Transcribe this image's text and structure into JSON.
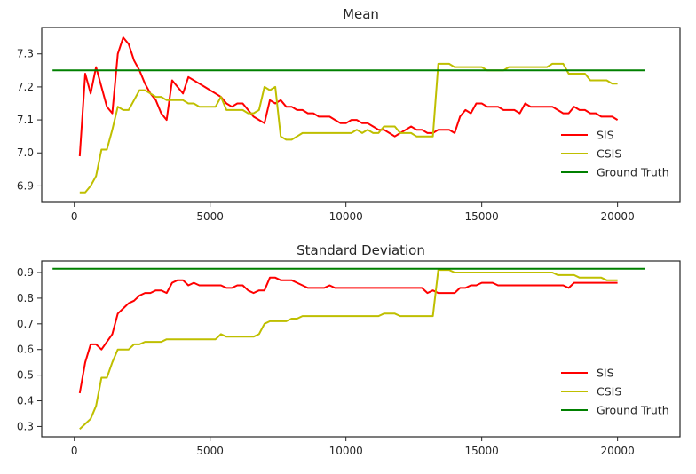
{
  "chart_data": [
    {
      "type": "line",
      "title": "Mean",
      "xlabel": "",
      "ylabel": "",
      "xlim": [
        -1200,
        22300
      ],
      "ylim": [
        6.85,
        7.38
      ],
      "xticks": [
        0,
        5000,
        10000,
        15000,
        20000
      ],
      "yticks": [
        6.9,
        7.0,
        7.1,
        7.2,
        7.3
      ],
      "ytick_decimals": 1,
      "grid": false,
      "legend_position": "lower-right",
      "series": [
        {
          "name": "SIS",
          "color": "#ff0000",
          "x": [
            200,
            400,
            600,
            800,
            1000,
            1200,
            1400,
            1600,
            1800,
            2000,
            2200,
            2400,
            2600,
            2800,
            3000,
            3200,
            3400,
            3600,
            3800,
            4000,
            4200,
            4400,
            4600,
            4800,
            5000,
            5200,
            5400,
            5600,
            5800,
            6000,
            6200,
            6400,
            6600,
            6800,
            7000,
            7200,
            7400,
            7600,
            7800,
            8000,
            8200,
            8400,
            8600,
            8800,
            9000,
            9200,
            9400,
            9600,
            9800,
            10000,
            10200,
            10400,
            10600,
            10800,
            11000,
            11200,
            11400,
            11600,
            11800,
            12000,
            12200,
            12400,
            12600,
            12800,
            13000,
            13200,
            13400,
            13600,
            13800,
            14000,
            14200,
            14400,
            14600,
            14800,
            15000,
            15200,
            15400,
            15600,
            15800,
            16000,
            16200,
            16400,
            16600,
            16800,
            17000,
            17200,
            17400,
            17600,
            17800,
            18000,
            18200,
            18400,
            18600,
            18800,
            19000,
            19200,
            19400,
            19600,
            19800,
            20000
          ],
          "values": [
            6.99,
            7.24,
            7.18,
            7.26,
            7.2,
            7.14,
            7.12,
            7.3,
            7.35,
            7.33,
            7.28,
            7.25,
            7.21,
            7.18,
            7.16,
            7.12,
            7.1,
            7.22,
            7.2,
            7.18,
            7.23,
            7.22,
            7.21,
            7.2,
            7.19,
            7.18,
            7.17,
            7.15,
            7.14,
            7.15,
            7.15,
            7.13,
            7.11,
            7.1,
            7.09,
            7.16,
            7.15,
            7.16,
            7.14,
            7.14,
            7.13,
            7.13,
            7.12,
            7.12,
            7.11,
            7.11,
            7.11,
            7.1,
            7.09,
            7.09,
            7.1,
            7.1,
            7.09,
            7.09,
            7.08,
            7.07,
            7.07,
            7.06,
            7.05,
            7.06,
            7.07,
            7.08,
            7.07,
            7.07,
            7.06,
            7.06,
            7.07,
            7.07,
            7.07,
            7.06,
            7.11,
            7.13,
            7.12,
            7.15,
            7.15,
            7.14,
            7.14,
            7.14,
            7.13,
            7.13,
            7.13,
            7.12,
            7.15,
            7.14,
            7.14,
            7.14,
            7.14,
            7.14,
            7.13,
            7.12,
            7.12,
            7.14,
            7.13,
            7.13,
            7.12,
            7.12,
            7.11,
            7.11,
            7.11,
            7.1
          ]
        },
        {
          "name": "CSIS",
          "color": "#bfbf00",
          "x": [
            200,
            400,
            600,
            800,
            1000,
            1200,
            1400,
            1600,
            1800,
            2000,
            2200,
            2400,
            2600,
            2800,
            3000,
            3200,
            3400,
            3600,
            3800,
            4000,
            4200,
            4400,
            4600,
            4800,
            5000,
            5200,
            5400,
            5600,
            5800,
            6000,
            6200,
            6400,
            6600,
            6800,
            7000,
            7200,
            7400,
            7600,
            7800,
            8000,
            8200,
            8400,
            8600,
            8800,
            9000,
            9200,
            9400,
            9600,
            9800,
            10000,
            10200,
            10400,
            10600,
            10800,
            11000,
            11200,
            11400,
            11600,
            11800,
            12000,
            12200,
            12400,
            12600,
            12800,
            13000,
            13200,
            13400,
            13600,
            13800,
            14000,
            14200,
            14400,
            14600,
            14800,
            15000,
            15200,
            15400,
            15600,
            15800,
            16000,
            16200,
            16400,
            16600,
            16800,
            17000,
            17200,
            17400,
            17600,
            17800,
            18000,
            18200,
            18400,
            18600,
            18800,
            19000,
            19200,
            19400,
            19600,
            19800,
            20000
          ],
          "values": [
            6.88,
            6.88,
            6.9,
            6.93,
            7.01,
            7.01,
            7.07,
            7.14,
            7.13,
            7.13,
            7.16,
            7.19,
            7.19,
            7.18,
            7.17,
            7.17,
            7.16,
            7.16,
            7.16,
            7.16,
            7.15,
            7.15,
            7.14,
            7.14,
            7.14,
            7.14,
            7.17,
            7.13,
            7.13,
            7.13,
            7.13,
            7.12,
            7.12,
            7.13,
            7.2,
            7.19,
            7.2,
            7.05,
            7.04,
            7.04,
            7.05,
            7.06,
            7.06,
            7.06,
            7.06,
            7.06,
            7.06,
            7.06,
            7.06,
            7.06,
            7.06,
            7.07,
            7.06,
            7.07,
            7.06,
            7.06,
            7.08,
            7.08,
            7.08,
            7.06,
            7.06,
            7.06,
            7.05,
            7.05,
            7.05,
            7.05,
            7.27,
            7.27,
            7.27,
            7.26,
            7.26,
            7.26,
            7.26,
            7.26,
            7.26,
            7.25,
            7.25,
            7.25,
            7.25,
            7.26,
            7.26,
            7.26,
            7.26,
            7.26,
            7.26,
            7.26,
            7.26,
            7.27,
            7.27,
            7.27,
            7.24,
            7.24,
            7.24,
            7.24,
            7.22,
            7.22,
            7.22,
            7.22,
            7.21,
            7.21
          ]
        },
        {
          "name": "Ground Truth",
          "color": "#008000",
          "x": [
            -800,
            21000
          ],
          "values": [
            7.25,
            7.25
          ]
        }
      ]
    },
    {
      "type": "line",
      "title": "Standard Deviation",
      "xlabel": "",
      "ylabel": "",
      "xlim": [
        -1200,
        22300
      ],
      "ylim": [
        0.26,
        0.945
      ],
      "xticks": [
        0,
        5000,
        10000,
        15000,
        20000
      ],
      "yticks": [
        0.3,
        0.4,
        0.5,
        0.6,
        0.7,
        0.8,
        0.9
      ],
      "ytick_decimals": 1,
      "grid": false,
      "legend_position": "lower-right",
      "series": [
        {
          "name": "SIS",
          "color": "#ff0000",
          "x": [
            200,
            400,
            600,
            800,
            1000,
            1200,
            1400,
            1600,
            1800,
            2000,
            2200,
            2400,
            2600,
            2800,
            3000,
            3200,
            3400,
            3600,
            3800,
            4000,
            4200,
            4400,
            4600,
            4800,
            5000,
            5200,
            5400,
            5600,
            5800,
            6000,
            6200,
            6400,
            6600,
            6800,
            7000,
            7200,
            7400,
            7600,
            7800,
            8000,
            8200,
            8400,
            8600,
            8800,
            9000,
            9200,
            9400,
            9600,
            9800,
            10000,
            10200,
            10400,
            10600,
            10800,
            11000,
            11200,
            11400,
            11600,
            11800,
            12000,
            12200,
            12400,
            12600,
            12800,
            13000,
            13200,
            13400,
            13600,
            13800,
            14000,
            14200,
            14400,
            14600,
            14800,
            15000,
            15200,
            15400,
            15600,
            15800,
            16000,
            16200,
            16400,
            16600,
            16800,
            17000,
            17200,
            17400,
            17600,
            17800,
            18000,
            18200,
            18400,
            18600,
            18800,
            19000,
            19200,
            19400,
            19600,
            19800,
            20000
          ],
          "values": [
            0.43,
            0.55,
            0.62,
            0.62,
            0.6,
            0.63,
            0.66,
            0.74,
            0.76,
            0.78,
            0.79,
            0.81,
            0.82,
            0.82,
            0.83,
            0.83,
            0.82,
            0.86,
            0.87,
            0.87,
            0.85,
            0.86,
            0.85,
            0.85,
            0.85,
            0.85,
            0.85,
            0.84,
            0.84,
            0.85,
            0.85,
            0.83,
            0.82,
            0.83,
            0.83,
            0.88,
            0.88,
            0.87,
            0.87,
            0.87,
            0.86,
            0.85,
            0.84,
            0.84,
            0.84,
            0.84,
            0.85,
            0.84,
            0.84,
            0.84,
            0.84,
            0.84,
            0.84,
            0.84,
            0.84,
            0.84,
            0.84,
            0.84,
            0.84,
            0.84,
            0.84,
            0.84,
            0.84,
            0.84,
            0.82,
            0.83,
            0.82,
            0.82,
            0.82,
            0.82,
            0.84,
            0.84,
            0.85,
            0.85,
            0.86,
            0.86,
            0.86,
            0.85,
            0.85,
            0.85,
            0.85,
            0.85,
            0.85,
            0.85,
            0.85,
            0.85,
            0.85,
            0.85,
            0.85,
            0.85,
            0.84,
            0.86,
            0.86,
            0.86,
            0.86,
            0.86,
            0.86,
            0.86,
            0.86,
            0.86
          ]
        },
        {
          "name": "CSIS",
          "color": "#bfbf00",
          "x": [
            200,
            400,
            600,
            800,
            1000,
            1200,
            1400,
            1600,
            1800,
            2000,
            2200,
            2400,
            2600,
            2800,
            3000,
            3200,
            3400,
            3600,
            3800,
            4000,
            4200,
            4400,
            4600,
            4800,
            5000,
            5200,
            5400,
            5600,
            5800,
            6000,
            6200,
            6400,
            6600,
            6800,
            7000,
            7200,
            7400,
            7600,
            7800,
            8000,
            8200,
            8400,
            8600,
            8800,
            9000,
            9200,
            9400,
            9600,
            9800,
            10000,
            10200,
            10400,
            10600,
            10800,
            11000,
            11200,
            11400,
            11600,
            11800,
            12000,
            12200,
            12400,
            12600,
            12800,
            13000,
            13200,
            13400,
            13600,
            13800,
            14000,
            14200,
            14400,
            14600,
            14800,
            15000,
            15200,
            15400,
            15600,
            15800,
            16000,
            16200,
            16400,
            16600,
            16800,
            17000,
            17200,
            17400,
            17600,
            17800,
            18000,
            18200,
            18400,
            18600,
            18800,
            19000,
            19200,
            19400,
            19600,
            19800,
            20000
          ],
          "values": [
            0.29,
            0.31,
            0.33,
            0.38,
            0.49,
            0.49,
            0.55,
            0.6,
            0.6,
            0.6,
            0.62,
            0.62,
            0.63,
            0.63,
            0.63,
            0.63,
            0.64,
            0.64,
            0.64,
            0.64,
            0.64,
            0.64,
            0.64,
            0.64,
            0.64,
            0.64,
            0.66,
            0.65,
            0.65,
            0.65,
            0.65,
            0.65,
            0.65,
            0.66,
            0.7,
            0.71,
            0.71,
            0.71,
            0.71,
            0.72,
            0.72,
            0.73,
            0.73,
            0.73,
            0.73,
            0.73,
            0.73,
            0.73,
            0.73,
            0.73,
            0.73,
            0.73,
            0.73,
            0.73,
            0.73,
            0.73,
            0.74,
            0.74,
            0.74,
            0.73,
            0.73,
            0.73,
            0.73,
            0.73,
            0.73,
            0.73,
            0.91,
            0.91,
            0.91,
            0.9,
            0.9,
            0.9,
            0.9,
            0.9,
            0.9,
            0.9,
            0.9,
            0.9,
            0.9,
            0.9,
            0.9,
            0.9,
            0.9,
            0.9,
            0.9,
            0.9,
            0.9,
            0.9,
            0.89,
            0.89,
            0.89,
            0.89,
            0.88,
            0.88,
            0.88,
            0.88,
            0.88,
            0.87,
            0.87,
            0.87
          ]
        },
        {
          "name": "Ground Truth",
          "color": "#008000",
          "x": [
            -800,
            21000
          ],
          "values": [
            0.915,
            0.915
          ]
        }
      ]
    }
  ]
}
